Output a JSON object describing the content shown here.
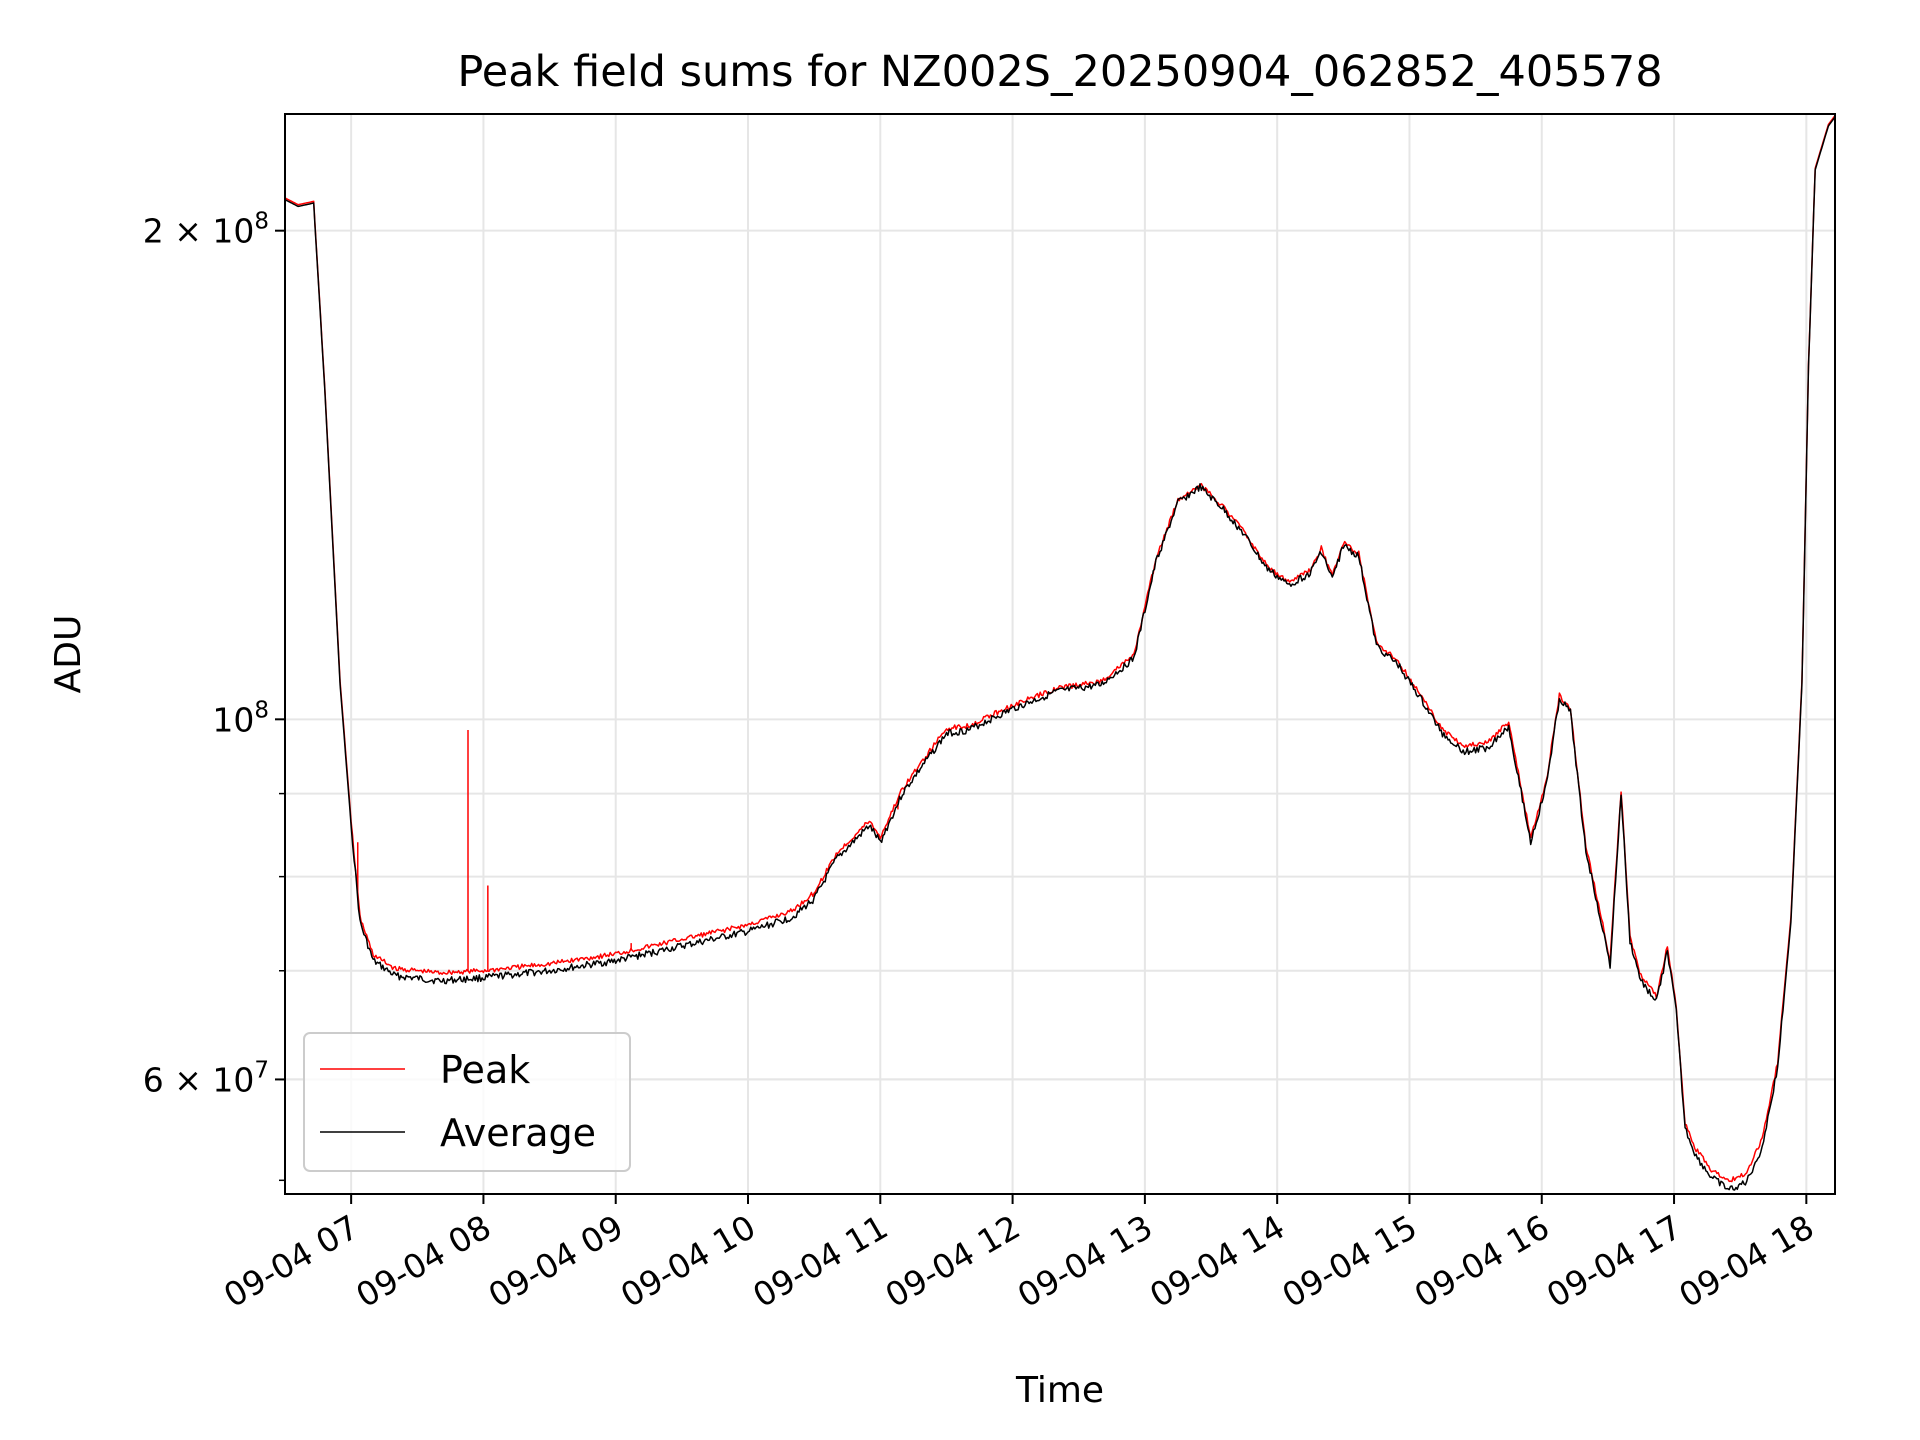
{
  "chart_data": {
    "type": "line",
    "title": "Peak field sums for NZ002S_20250904_062852_405578",
    "xlabel": "Time",
    "ylabel": "ADU",
    "y_scale": "log",
    "grid": true,
    "legend_position": "lower-left",
    "xlim": [
      "2025-09-04 06:30",
      "2025-09-04 18:13"
    ],
    "ylim": [
      51000000,
      236000000
    ],
    "x_ticks": [
      "09-04 07",
      "09-04 08",
      "09-04 09",
      "09-04 10",
      "09-04 11",
      "09-04 12",
      "09-04 13",
      "09-04 14",
      "09-04 15",
      "09-04 16",
      "09-04 17",
      "09-04 18"
    ],
    "y_ticks": [
      {
        "value": 200000000,
        "label": "2 × 10^8"
      },
      {
        "value": 100000000,
        "label": "10^8"
      },
      {
        "value": 60000000,
        "label": "6 × 10^7"
      }
    ],
    "series": [
      {
        "name": "Average",
        "color": "#000000",
        "points": [
          [
            "2025-09-04 06:30",
            209000000
          ],
          [
            "2025-09-04 06:36",
            207000000
          ],
          [
            "2025-09-04 06:43",
            208000000
          ],
          [
            "2025-09-04 06:48",
            160000000
          ],
          [
            "2025-09-04 06:55",
            105000000
          ],
          [
            "2025-09-04 07:00",
            86000000
          ],
          [
            "2025-09-04 07:04",
            75000000
          ],
          [
            "2025-09-04 07:10",
            71000000
          ],
          [
            "2025-09-04 07:20",
            69500000
          ],
          [
            "2025-09-04 07:40",
            69000000
          ],
          [
            "2025-09-04 08:00",
            69300000
          ],
          [
            "2025-09-04 08:30",
            70000000
          ],
          [
            "2025-09-04 09:00",
            71000000
          ],
          [
            "2025-09-04 09:30",
            72500000
          ],
          [
            "2025-09-04 10:00",
            74000000
          ],
          [
            "2025-09-04 10:20",
            75500000
          ],
          [
            "2025-09-04 10:30",
            77500000
          ],
          [
            "2025-09-04 10:40",
            82000000
          ],
          [
            "2025-09-04 10:55",
            86000000
          ],
          [
            "2025-09-04 11:00",
            84000000
          ],
          [
            "2025-09-04 11:10",
            90000000
          ],
          [
            "2025-09-04 11:20",
            94000000
          ],
          [
            "2025-09-04 11:30",
            98000000
          ],
          [
            "2025-09-04 11:40",
            98500000
          ],
          [
            "2025-09-04 12:00",
            101500000
          ],
          [
            "2025-09-04 12:20",
            104000000
          ],
          [
            "2025-09-04 12:40",
            105000000
          ],
          [
            "2025-09-04 12:55",
            109000000
          ],
          [
            "2025-09-04 13:05",
            125000000
          ],
          [
            "2025-09-04 13:15",
            136000000
          ],
          [
            "2025-09-04 13:25",
            139000000
          ],
          [
            "2025-09-04 13:35",
            135000000
          ],
          [
            "2025-09-04 13:45",
            130000000
          ],
          [
            "2025-09-04 13:55",
            124000000
          ],
          [
            "2025-09-04 14:05",
            121000000
          ],
          [
            "2025-09-04 14:15",
            123000000
          ],
          [
            "2025-09-04 14:20",
            127000000
          ],
          [
            "2025-09-04 14:25",
            122000000
          ],
          [
            "2025-09-04 14:30",
            128000000
          ],
          [
            "2025-09-04 14:37",
            126000000
          ],
          [
            "2025-09-04 14:45",
            111000000
          ],
          [
            "2025-09-04 14:55",
            108000000
          ],
          [
            "2025-09-04 15:05",
            103000000
          ],
          [
            "2025-09-04 15:15",
            98000000
          ],
          [
            "2025-09-04 15:25",
            95500000
          ],
          [
            "2025-09-04 15:35",
            96000000
          ],
          [
            "2025-09-04 15:45",
            99000000
          ],
          [
            "2025-09-04 15:55",
            84000000
          ],
          [
            "2025-09-04 16:02",
            91000000
          ],
          [
            "2025-09-04 16:08",
            103000000
          ],
          [
            "2025-09-04 16:13",
            101000000
          ],
          [
            "2025-09-04 16:20",
            83000000
          ],
          [
            "2025-09-04 16:27",
            75000000
          ],
          [
            "2025-09-04 16:31",
            70500000
          ],
          [
            "2025-09-04 16:36",
            90000000
          ],
          [
            "2025-09-04 16:40",
            73000000
          ],
          [
            "2025-09-04 16:45",
            69000000
          ],
          [
            "2025-09-04 16:52",
            67000000
          ],
          [
            "2025-09-04 16:57",
            72000000
          ],
          [
            "2025-09-04 17:01",
            66000000
          ],
          [
            "2025-09-04 17:05",
            56000000
          ],
          [
            "2025-09-04 17:10",
            53800000
          ],
          [
            "2025-09-04 17:17",
            52200000
          ],
          [
            "2025-09-04 17:25",
            51300000
          ],
          [
            "2025-09-04 17:33",
            51900000
          ],
          [
            "2025-09-04 17:40",
            54500000
          ],
          [
            "2025-09-04 17:47",
            61000000
          ],
          [
            "2025-09-04 17:53",
            75000000
          ],
          [
            "2025-09-04 17:58",
            105000000
          ],
          [
            "2025-09-04 18:01",
            165000000
          ],
          [
            "2025-09-04 18:04",
            218000000
          ],
          [
            "2025-09-04 18:10",
            232000000
          ],
          [
            "2025-09-04 18:13",
            235000000
          ]
        ]
      },
      {
        "name": "Peak",
        "color": "#ff0000",
        "points": [
          [
            "2025-09-04 06:30",
            209500000
          ],
          [
            "2025-09-04 06:36",
            207500000
          ],
          [
            "2025-09-04 06:43",
            208500000
          ],
          [
            "2025-09-04 06:48",
            160500000
          ],
          [
            "2025-09-04 06:55",
            105500000
          ],
          [
            "2025-09-04 07:00",
            86500000
          ],
          [
            "2025-09-04 07:04",
            75500000
          ],
          [
            "2025-09-04 07:10",
            71600000
          ],
          [
            "2025-09-04 07:20",
            70200000
          ],
          [
            "2025-09-04 07:40",
            69800000
          ],
          [
            "2025-09-04 08:00",
            70000000
          ],
          [
            "2025-09-04 08:30",
            70700000
          ],
          [
            "2025-09-04 09:00",
            71700000
          ],
          [
            "2025-09-04 09:30",
            73200000
          ],
          [
            "2025-09-04 10:00",
            74700000
          ],
          [
            "2025-09-04 10:20",
            76200000
          ],
          [
            "2025-09-04 10:30",
            78200000
          ],
          [
            "2025-09-04 10:40",
            82600000
          ],
          [
            "2025-09-04 10:55",
            86600000
          ],
          [
            "2025-09-04 11:00",
            84600000
          ],
          [
            "2025-09-04 11:10",
            90600000
          ],
          [
            "2025-09-04 11:20",
            94600000
          ],
          [
            "2025-09-04 11:30",
            98700000
          ],
          [
            "2025-09-04 11:40",
            99100000
          ],
          [
            "2025-09-04 12:00",
            102000000
          ],
          [
            "2025-09-04 12:20",
            104500000
          ],
          [
            "2025-09-04 12:40",
            105500000
          ],
          [
            "2025-09-04 12:55",
            109500000
          ],
          [
            "2025-09-04 13:05",
            125500000
          ],
          [
            "2025-09-04 13:15",
            136500000
          ],
          [
            "2025-09-04 13:25",
            139500000
          ],
          [
            "2025-09-04 13:35",
            135500000
          ],
          [
            "2025-09-04 13:45",
            130500000
          ],
          [
            "2025-09-04 13:55",
            124500000
          ],
          [
            "2025-09-04 14:05",
            121500000
          ],
          [
            "2025-09-04 14:15",
            123500000
          ],
          [
            "2025-09-04 14:20",
            127500000
          ],
          [
            "2025-09-04 14:25",
            122500000
          ],
          [
            "2025-09-04 14:30",
            128500000
          ],
          [
            "2025-09-04 14:37",
            126500000
          ],
          [
            "2025-09-04 14:45",
            111500000
          ],
          [
            "2025-09-04 14:55",
            108500000
          ],
          [
            "2025-09-04 15:05",
            103500000
          ],
          [
            "2025-09-04 15:15",
            98600000
          ],
          [
            "2025-09-04 15:25",
            96300000
          ],
          [
            "2025-09-04 15:35",
            96700000
          ],
          [
            "2025-09-04 15:45",
            99600000
          ],
          [
            "2025-09-04 15:55",
            84500000
          ],
          [
            "2025-09-04 16:02",
            91500000
          ],
          [
            "2025-09-04 16:08",
            103500000
          ],
          [
            "2025-09-04 16:13",
            101500000
          ],
          [
            "2025-09-04 16:20",
            83500000
          ],
          [
            "2025-09-04 16:27",
            75500000
          ],
          [
            "2025-09-04 16:31",
            71000000
          ],
          [
            "2025-09-04 16:36",
            90500000
          ],
          [
            "2025-09-04 16:40",
            73500000
          ],
          [
            "2025-09-04 16:45",
            69500000
          ],
          [
            "2025-09-04 16:52",
            67500000
          ],
          [
            "2025-09-04 16:57",
            72500000
          ],
          [
            "2025-09-04 17:01",
            66500000
          ],
          [
            "2025-09-04 17:05",
            56400000
          ],
          [
            "2025-09-04 17:10",
            54300000
          ],
          [
            "2025-09-04 17:17",
            52800000
          ],
          [
            "2025-09-04 17:25",
            52000000
          ],
          [
            "2025-09-04 17:33",
            52600000
          ],
          [
            "2025-09-04 17:40",
            55200000
          ],
          [
            "2025-09-04 17:47",
            61500000
          ],
          [
            "2025-09-04 17:53",
            75500000
          ],
          [
            "2025-09-04 17:58",
            105500000
          ],
          [
            "2025-09-04 18:01",
            165500000
          ],
          [
            "2025-09-04 18:04",
            218500000
          ],
          [
            "2025-09-04 18:10",
            232500000
          ],
          [
            "2025-09-04 18:13",
            235500000
          ]
        ],
        "spikes": [
          [
            "2025-09-04 07:03",
            84000000
          ],
          [
            "2025-09-04 07:53",
            98500000
          ],
          [
            "2025-09-04 08:02",
            79000000
          ],
          [
            "2025-09-04 09:07",
            72800000
          ],
          [
            "2025-09-04 11:08",
            88000000
          ]
        ]
      }
    ],
    "legend": [
      {
        "label": "Peak",
        "color": "#ff0000"
      },
      {
        "label": "Average",
        "color": "#000000"
      }
    ]
  }
}
